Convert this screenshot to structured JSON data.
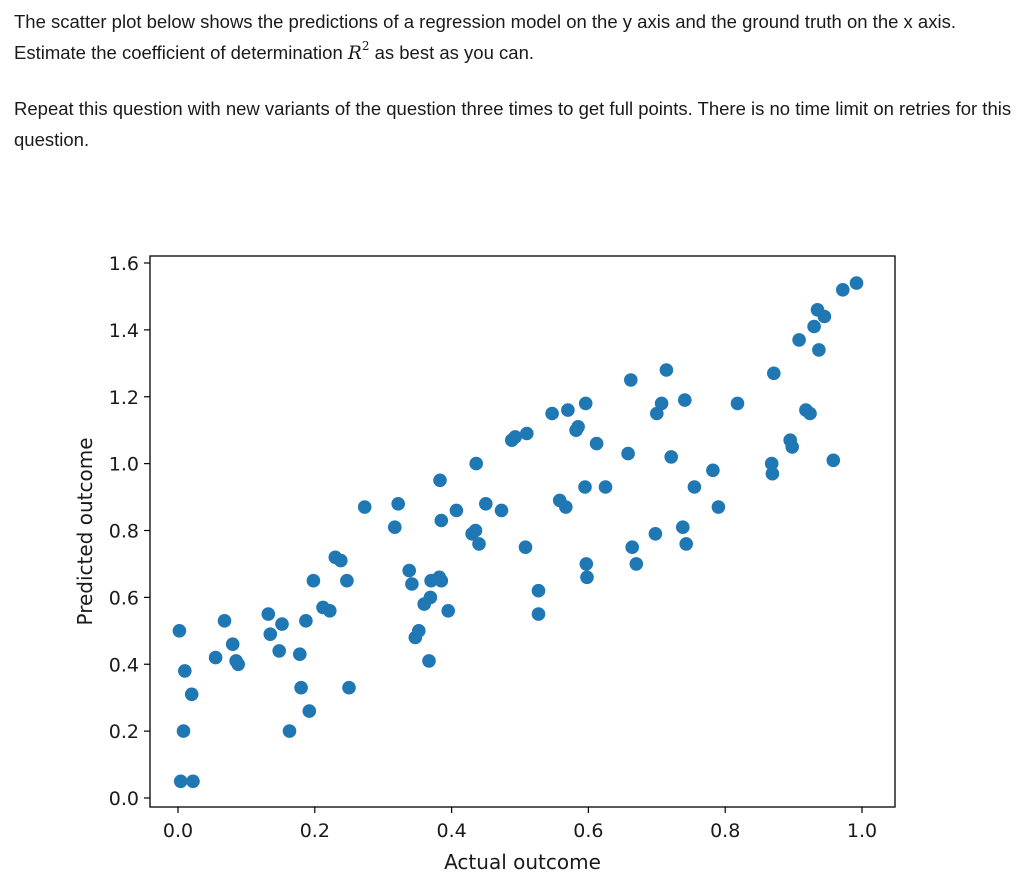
{
  "question": {
    "line1_before": "The scatter plot below shows the predictions of a regression model on the y axis and the ground truth on the x axis. Estimate the coefficient of determination ",
    "r_symbol": "R",
    "r_exponent": "2",
    "line1_after": " as best as you can.",
    "line2": "Repeat this question with new variants of the question three times to get full points. There is no time limit on retries for this question."
  },
  "chart_data": {
    "type": "scatter",
    "title": "",
    "xlabel": "Actual outcome",
    "ylabel": "Predicted outcome",
    "xlim": [
      -0.05,
      1.04
    ],
    "ylim": [
      -0.02,
      1.62
    ],
    "xticks": [
      0.0,
      0.2,
      0.4,
      0.6,
      0.8,
      1.0
    ],
    "xtick_labels": [
      "0.0",
      "0.2",
      "0.4",
      "0.6",
      "0.8",
      "1.0"
    ],
    "yticks": [
      0.0,
      0.2,
      0.4,
      0.6,
      0.8,
      1.0,
      1.2,
      1.4,
      1.6
    ],
    "ytick_labels": [
      "0.0",
      "0.2",
      "0.4",
      "0.6",
      "0.8",
      "1.0",
      "1.2",
      "1.4",
      "1.6"
    ],
    "grid": false,
    "marker_color": "#1f77b4",
    "points": [
      [
        0.002,
        0.5
      ],
      [
        0.004,
        0.05
      ],
      [
        0.008,
        0.2
      ],
      [
        0.01,
        0.38
      ],
      [
        0.02,
        0.31
      ],
      [
        0.022,
        0.05
      ],
      [
        0.055,
        0.42
      ],
      [
        0.068,
        0.53
      ],
      [
        0.08,
        0.46
      ],
      [
        0.085,
        0.41
      ],
      [
        0.088,
        0.4
      ],
      [
        0.132,
        0.55
      ],
      [
        0.135,
        0.49
      ],
      [
        0.148,
        0.44
      ],
      [
        0.152,
        0.52
      ],
      [
        0.163,
        0.2
      ],
      [
        0.178,
        0.43
      ],
      [
        0.18,
        0.33
      ],
      [
        0.187,
        0.53
      ],
      [
        0.192,
        0.26
      ],
      [
        0.198,
        0.65
      ],
      [
        0.212,
        0.57
      ],
      [
        0.222,
        0.56
      ],
      [
        0.23,
        0.72
      ],
      [
        0.238,
        0.71
      ],
      [
        0.247,
        0.65
      ],
      [
        0.25,
        0.33
      ],
      [
        0.273,
        0.87
      ],
      [
        0.317,
        0.81
      ],
      [
        0.322,
        0.88
      ],
      [
        0.338,
        0.68
      ],
      [
        0.342,
        0.64
      ],
      [
        0.347,
        0.48
      ],
      [
        0.352,
        0.5
      ],
      [
        0.36,
        0.58
      ],
      [
        0.367,
        0.41
      ],
      [
        0.369,
        0.6
      ],
      [
        0.37,
        0.65
      ],
      [
        0.382,
        0.66
      ],
      [
        0.383,
        0.95
      ],
      [
        0.385,
        0.65
      ],
      [
        0.385,
        0.83
      ],
      [
        0.395,
        0.56
      ],
      [
        0.407,
        0.86
      ],
      [
        0.43,
        0.79
      ],
      [
        0.435,
        0.8
      ],
      [
        0.436,
        1.0
      ],
      [
        0.44,
        0.76
      ],
      [
        0.45,
        0.88
      ],
      [
        0.473,
        0.86
      ],
      [
        0.488,
        1.07
      ],
      [
        0.493,
        1.08
      ],
      [
        0.508,
        0.75
      ],
      [
        0.51,
        1.09
      ],
      [
        0.527,
        0.62
      ],
      [
        0.527,
        0.55
      ],
      [
        0.547,
        1.15
      ],
      [
        0.558,
        0.89
      ],
      [
        0.567,
        0.87
      ],
      [
        0.57,
        1.16
      ],
      [
        0.582,
        1.1
      ],
      [
        0.585,
        1.11
      ],
      [
        0.595,
        0.93
      ],
      [
        0.596,
        1.18
      ],
      [
        0.597,
        0.7
      ],
      [
        0.598,
        0.66
      ],
      [
        0.612,
        1.06
      ],
      [
        0.625,
        0.93
      ],
      [
        0.658,
        1.03
      ],
      [
        0.662,
        1.25
      ],
      [
        0.664,
        0.75
      ],
      [
        0.67,
        0.7
      ],
      [
        0.698,
        0.79
      ],
      [
        0.7,
        1.15
      ],
      [
        0.707,
        1.18
      ],
      [
        0.714,
        1.28
      ],
      [
        0.721,
        1.02
      ],
      [
        0.738,
        0.81
      ],
      [
        0.741,
        1.19
      ],
      [
        0.743,
        0.76
      ],
      [
        0.755,
        0.93
      ],
      [
        0.782,
        0.98
      ],
      [
        0.79,
        0.87
      ],
      [
        0.818,
        1.18
      ],
      [
        0.868,
        1.0
      ],
      [
        0.869,
        0.97
      ],
      [
        0.871,
        1.27
      ],
      [
        0.895,
        1.07
      ],
      [
        0.898,
        1.05
      ],
      [
        0.908,
        1.37
      ],
      [
        0.918,
        1.16
      ],
      [
        0.924,
        1.15
      ],
      [
        0.93,
        1.41
      ],
      [
        0.935,
        1.46
      ],
      [
        0.937,
        1.34
      ],
      [
        0.945,
        1.44
      ],
      [
        0.958,
        1.01
      ],
      [
        0.972,
        1.52
      ],
      [
        0.992,
        1.54
      ]
    ]
  }
}
